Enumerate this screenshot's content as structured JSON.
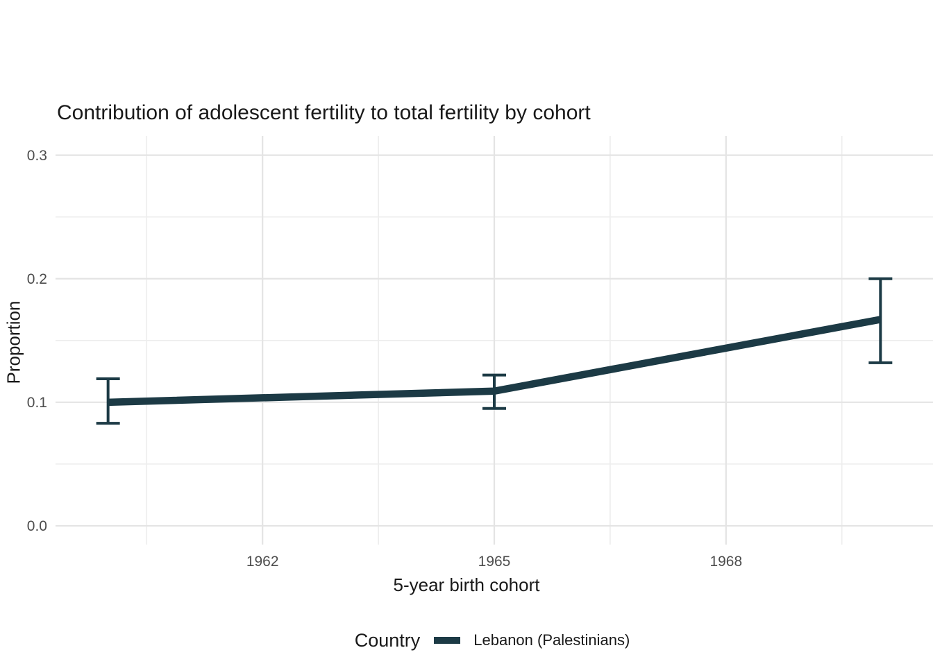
{
  "chart_data": {
    "type": "line",
    "title": "Contribution of adolescent fertility to total fertility by cohort",
    "xlabel": "5-year birth cohort",
    "ylabel": "Proportion",
    "series": [
      {
        "name": "Lebanon (Palestinians)",
        "color": "#1c3a45",
        "x": [
          1960,
          1965,
          1970
        ],
        "y": [
          0.1,
          0.109,
          0.167
        ],
        "ci_lower": [
          0.083,
          0.095,
          0.132
        ],
        "ci_upper": [
          0.119,
          0.122,
          0.2
        ]
      }
    ],
    "x_ticks": {
      "major": [
        1962,
        1965,
        1968
      ],
      "minor": [
        1960.5,
        1963.5,
        1966.5,
        1969.5
      ]
    },
    "y_ticks": {
      "major": [
        0.0,
        0.1,
        0.2,
        0.3
      ],
      "minor": [
        0.05,
        0.15,
        0.25
      ]
    },
    "x_tick_labels": [
      "1962",
      "1965",
      "1968"
    ],
    "y_tick_labels": [
      "0.0",
      "0.1",
      "0.2",
      "0.3"
    ],
    "xlim": [
      1959.32,
      1970.68
    ],
    "ylim": [
      -0.0152,
      0.3155
    ],
    "grid": true,
    "legend_position": "bottom",
    "legend": {
      "title": "Country",
      "entries": [
        {
          "label": "Lebanon (Palestinians)",
          "color": "#1c3a45"
        }
      ]
    },
    "style": {
      "grid_major_color": "#e4e4e4",
      "grid_minor_color": "#ededed",
      "tick_label_color": "#4d4d4d",
      "text_color": "#191919",
      "background": "#ffffff"
    }
  }
}
